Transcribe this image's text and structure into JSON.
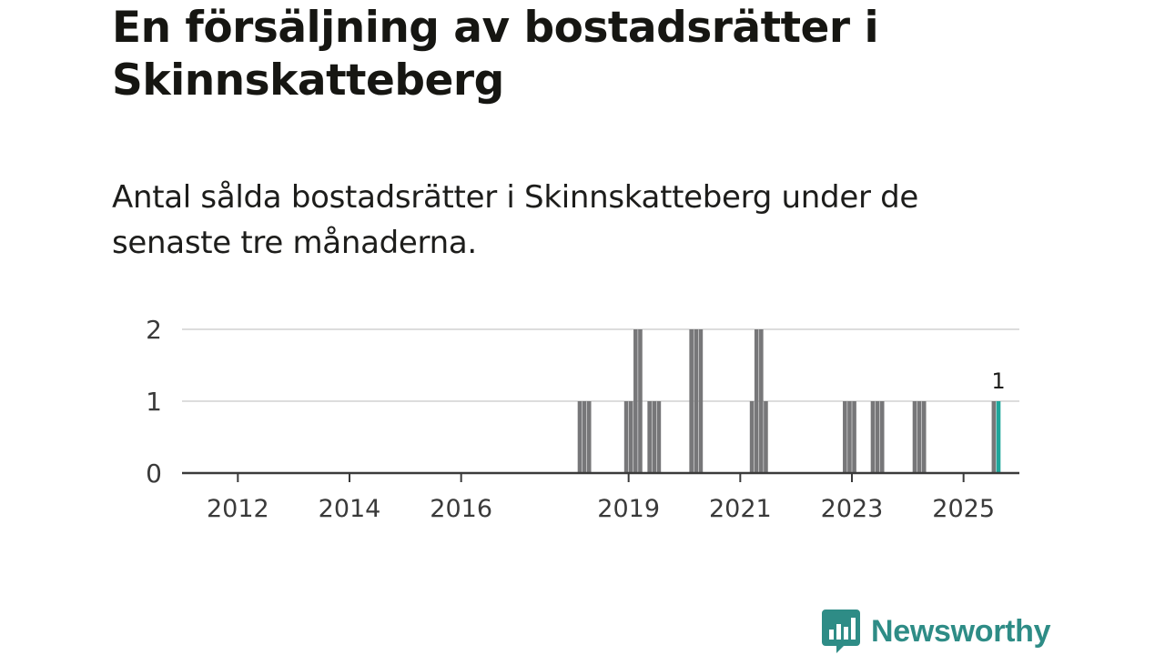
{
  "title": "En försäljning av bostadsrätter i Skinnskatteberg",
  "subtitle": "Antal sålda bostadsrätter i Skinnskatteberg under de senaste tre månaderna.",
  "brand": {
    "name": "Newsworthy",
    "icon": "chart-speech-bubble-icon",
    "color": "#2e8c86"
  },
  "chart_data": {
    "type": "bar",
    "title": "",
    "xlabel": "",
    "ylabel": "",
    "x_range": [
      2011,
      2026
    ],
    "ylim": [
      0,
      2
    ],
    "y_ticks": [
      "0",
      "1",
      "2"
    ],
    "x_ticks": [
      "2012",
      "2014",
      "2016",
      "2019",
      "2021",
      "2023",
      "2025"
    ],
    "grid": true,
    "bar_color": "#777779",
    "highlight_color": "#1fa69b",
    "bars": [
      {
        "x": "2018-02",
        "value": 1
      },
      {
        "x": "2018-03",
        "value": 1
      },
      {
        "x": "2018-04",
        "value": 1
      },
      {
        "x": "2018-12",
        "value": 1
      },
      {
        "x": "2019-01",
        "value": 1
      },
      {
        "x": "2019-02",
        "value": 2
      },
      {
        "x": "2019-03",
        "value": 2
      },
      {
        "x": "2019-05",
        "value": 1
      },
      {
        "x": "2019-06",
        "value": 1
      },
      {
        "x": "2019-07",
        "value": 1
      },
      {
        "x": "2020-02",
        "value": 2
      },
      {
        "x": "2020-03",
        "value": 2
      },
      {
        "x": "2020-04",
        "value": 2
      },
      {
        "x": "2021-03",
        "value": 1
      },
      {
        "x": "2021-04",
        "value": 2
      },
      {
        "x": "2021-05",
        "value": 2
      },
      {
        "x": "2021-06",
        "value": 1
      },
      {
        "x": "2022-11",
        "value": 1
      },
      {
        "x": "2022-12",
        "value": 1
      },
      {
        "x": "2023-01",
        "value": 1
      },
      {
        "x": "2023-05",
        "value": 1
      },
      {
        "x": "2023-06",
        "value": 1
      },
      {
        "x": "2023-07",
        "value": 1
      },
      {
        "x": "2024-02",
        "value": 1
      },
      {
        "x": "2024-03",
        "value": 1
      },
      {
        "x": "2024-04",
        "value": 1
      },
      {
        "x": "2025-07",
        "value": 1
      },
      {
        "x": "2025-08",
        "value": 1,
        "highlight": true,
        "label": "1"
      }
    ]
  }
}
